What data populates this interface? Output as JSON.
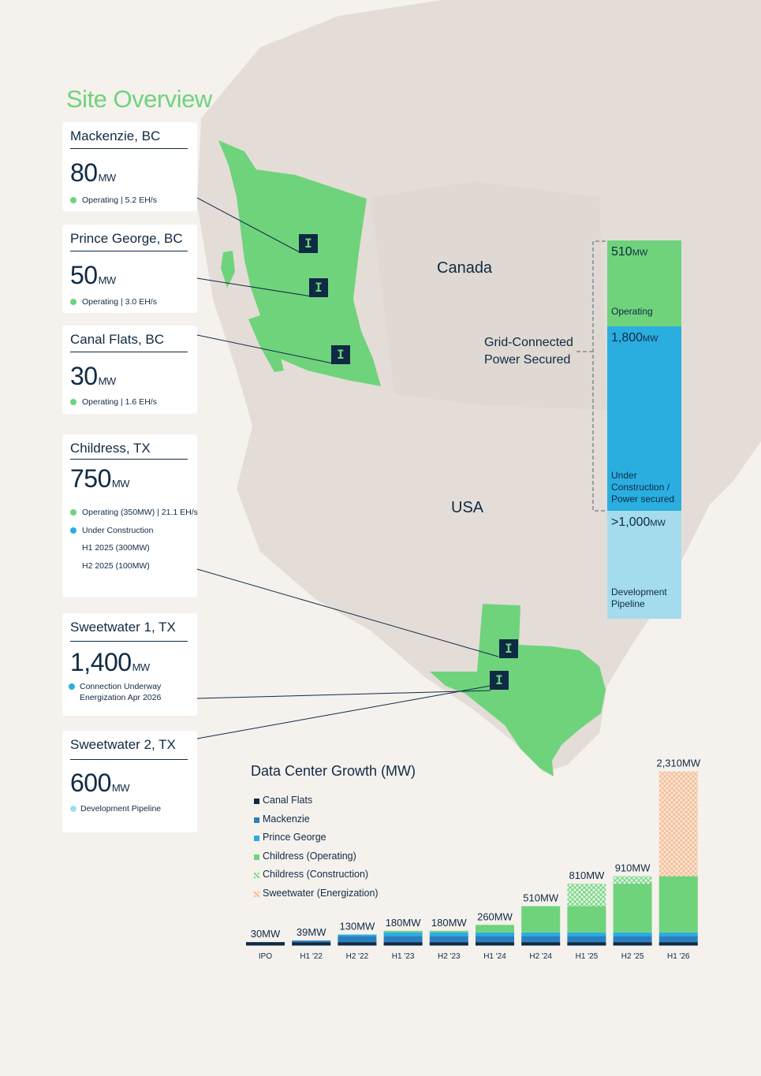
{
  "page": {
    "title": "Site Overview"
  },
  "colors": {
    "operating": "#6fd37c",
    "construction": "#2aaee0",
    "pipeline": "#a4dcee",
    "navy": "#0f2a44"
  },
  "countries": {
    "canada": "Canada",
    "usa": "USA"
  },
  "sites": [
    {
      "name": "Mackenzie, BC",
      "mw": "80",
      "unit": "MW",
      "lines": [
        {
          "status": "operating",
          "text": "Operating | 5.2 EH/s"
        }
      ]
    },
    {
      "name": "Prince George, BC",
      "mw": "50",
      "unit": "MW",
      "lines": [
        {
          "status": "operating",
          "text": "Operating | 3.0 EH/s"
        }
      ]
    },
    {
      "name": "Canal Flats, BC",
      "mw": "30",
      "unit": "MW",
      "lines": [
        {
          "status": "operating",
          "text": "Operating | 1.6 EH/s"
        }
      ]
    },
    {
      "name": "Childress, TX",
      "mw": "750",
      "unit": "MW",
      "lines": [
        {
          "status": "operating",
          "text": "Operating (350MW) | 21.1 EH/s"
        },
        {
          "status": "construction",
          "text": "Under Construction"
        },
        {
          "status": "",
          "text": "H1 2025 (300MW)"
        },
        {
          "status": "",
          "text": "H2 2025 (100MW)"
        }
      ]
    },
    {
      "name": "Sweetwater 1, TX",
      "mw": "1,400",
      "unit": "MW",
      "lines": [
        {
          "status": "construction",
          "text": "Connection Underway"
        },
        {
          "status": "",
          "text": "Energization Apr 2026"
        }
      ]
    },
    {
      "name": "Sweetwater 2, TX",
      "mw": "600",
      "unit": "MW",
      "lines": [
        {
          "status": "pipeline",
          "text": "Development Pipeline"
        }
      ]
    }
  ],
  "capacity": {
    "grid_label_1": "Grid-Connected",
    "grid_label_2": "Power Secured",
    "segments": [
      {
        "value": "510",
        "unit": "MW",
        "label": "Operating"
      },
      {
        "value": "1,800",
        "unit": "MW",
        "label": "Under Construction / Power secured"
      },
      {
        "value": ">1,000",
        "unit": "MW",
        "label": "Development Pipeline"
      }
    ]
  },
  "chart_data": {
    "type": "bar",
    "title": "Data Center Growth (MW)",
    "categories": [
      "IPO",
      "H1 '22",
      "H2 '22",
      "H1 '23",
      "H2 '23",
      "H1 '24",
      "H2 '24",
      "H1 '25",
      "H2 '25",
      "H1 '26"
    ],
    "total_labels": [
      "30MW",
      "39MW",
      "130MW",
      "180MW",
      "180MW",
      "260MW",
      "510MW",
      "810MW",
      "910MW",
      "2,310MW"
    ],
    "series": [
      {
        "name": "Canal Flats",
        "color": "#0f2a44",
        "values": [
          30,
          30,
          30,
          30,
          30,
          30,
          30,
          30,
          30,
          30
        ]
      },
      {
        "name": "Mackenzie",
        "color": "#2b7fc0",
        "values": [
          0,
          9,
          80,
          80,
          80,
          80,
          80,
          80,
          80,
          80
        ]
      },
      {
        "name": "Prince George",
        "color": "#2aaee0",
        "values": [
          0,
          0,
          20,
          50,
          50,
          50,
          50,
          50,
          50,
          50
        ]
      },
      {
        "name": "Childress (Operating)",
        "color": "#6fd37c",
        "values": [
          0,
          0,
          0,
          20,
          20,
          100,
          350,
          350,
          650,
          750
        ]
      },
      {
        "name": "Childress (Construction)",
        "color": "#6fd37c",
        "pattern": "hatch",
        "values": [
          0,
          0,
          0,
          0,
          0,
          0,
          0,
          300,
          100,
          0
        ]
      },
      {
        "name": "Sweetwater (Energization)",
        "color": "#f3b88f",
        "pattern": "crosshatch",
        "values": [
          0,
          0,
          0,
          0,
          0,
          0,
          0,
          0,
          0,
          1400
        ]
      }
    ],
    "ylim": [
      0,
      2400
    ],
    "grid": false,
    "legend": "top-left"
  }
}
